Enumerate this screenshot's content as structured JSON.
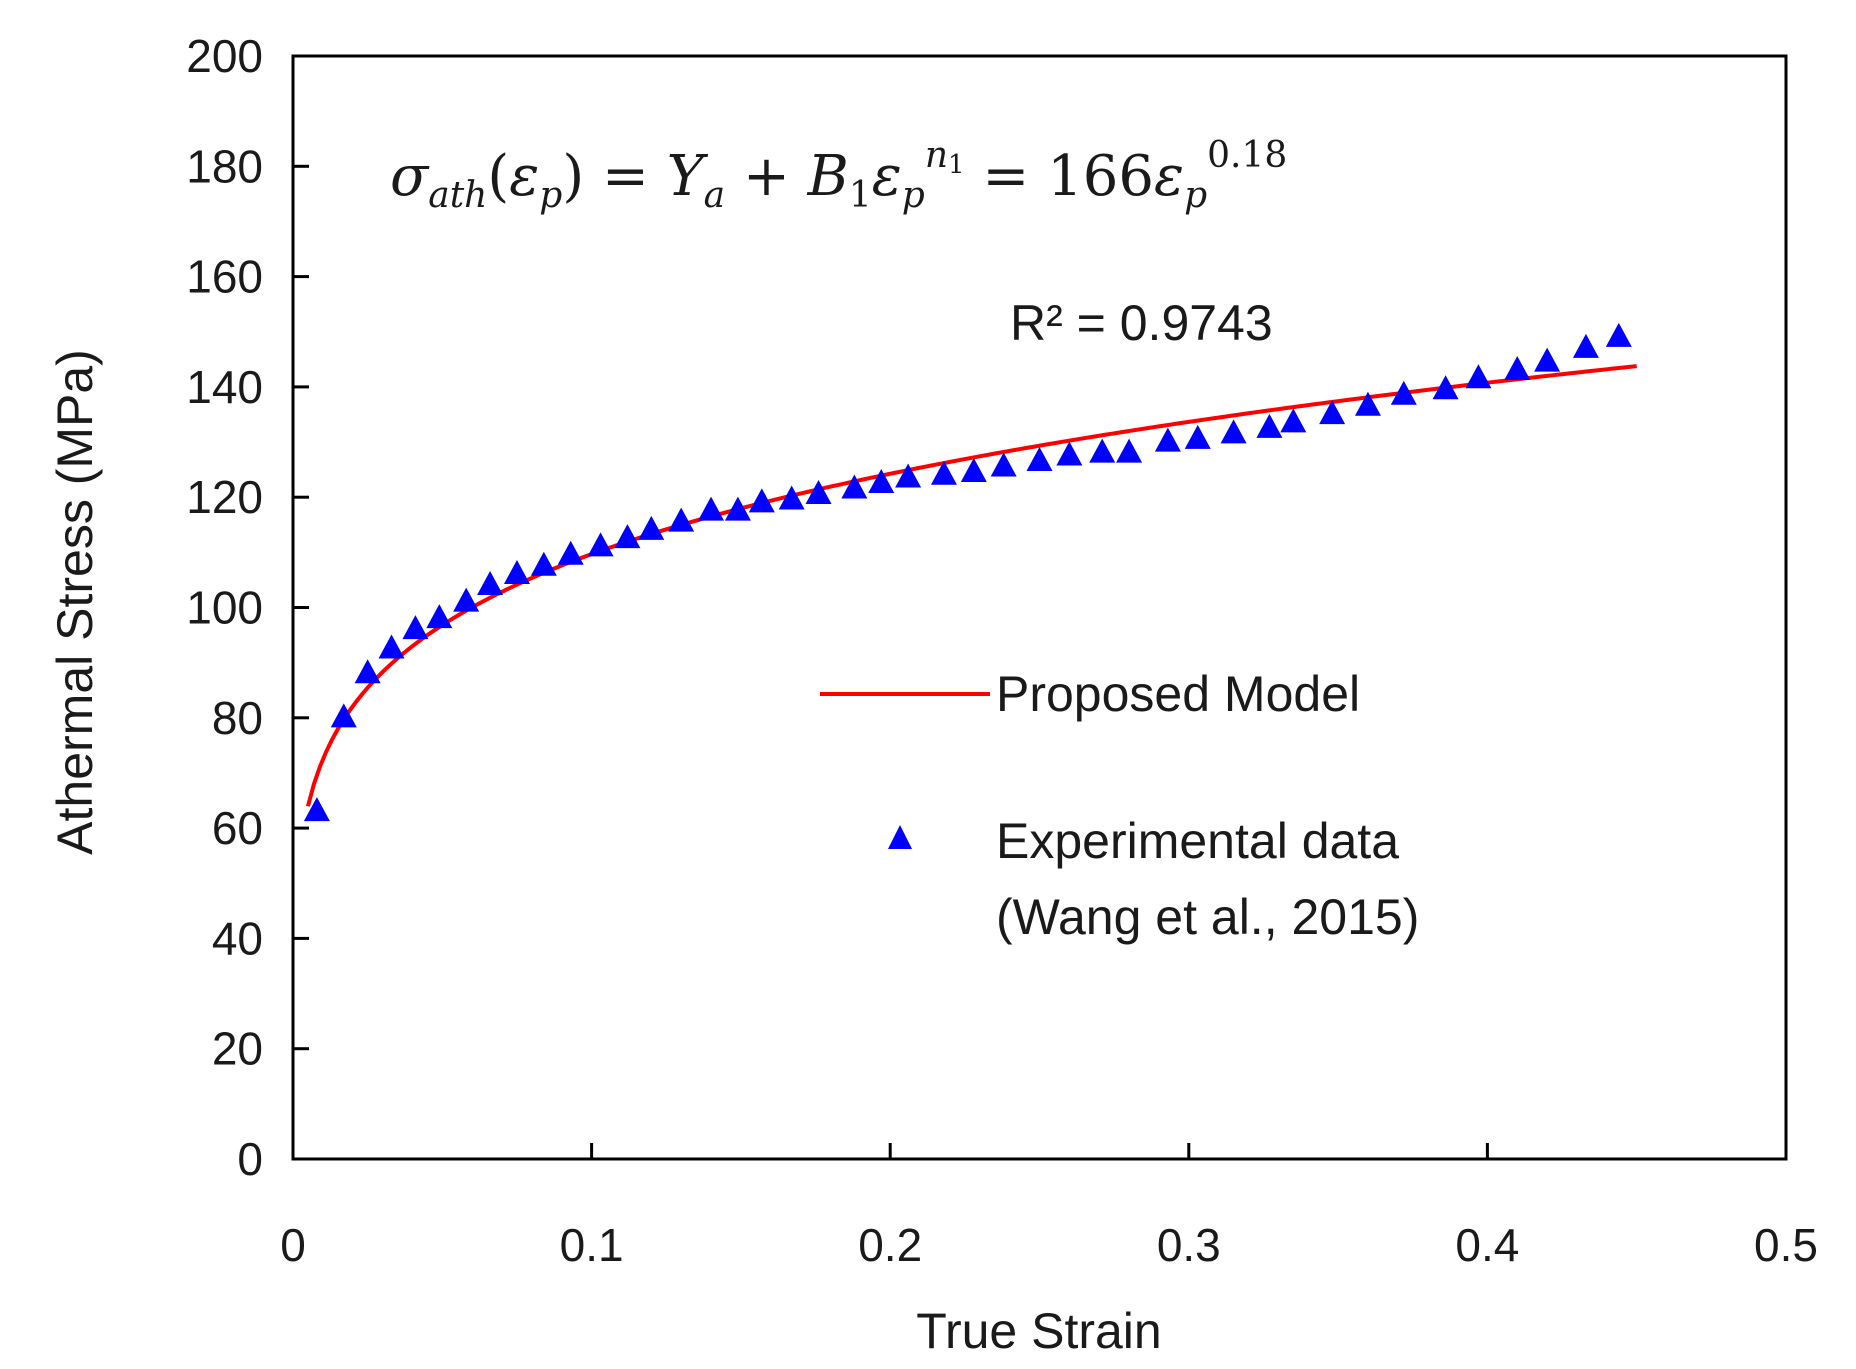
{
  "chart_data": {
    "type": "line",
    "title": "",
    "xlabel": "True Strain",
    "ylabel": "Athermal Stress (MPa)",
    "xlim": [
      0,
      0.5
    ],
    "ylim": [
      0,
      200
    ],
    "x_ticks": [
      0,
      0.1,
      0.2,
      0.3,
      0.4,
      0.5
    ],
    "x_tick_labels": [
      "0",
      "0.1",
      "0.2",
      "0.3",
      "0.4",
      "0.5"
    ],
    "y_ticks": [
      0,
      20,
      40,
      60,
      80,
      100,
      120,
      140,
      160,
      180,
      200
    ],
    "y_tick_labels": [
      "0",
      "20",
      "40",
      "60",
      "80",
      "100",
      "120",
      "140",
      "160",
      "180",
      "200"
    ],
    "grid": false,
    "equation": "σath(εp) = Ya + B1εp^n1 = 166εp^0.18",
    "r_squared": "R² = 0.9743",
    "model": {
      "name": "Proposed Model",
      "color": "#ff0000",
      "coefficient": 166,
      "exponent": 0.18,
      "x_start": 0.005,
      "x_end": 0.45
    },
    "series": [
      {
        "name": "Experimental data (Wang et al., 2015)",
        "legend_lines": [
          "Experimental data",
          "(Wang et al., 2015)"
        ],
        "marker": "triangle",
        "color": "#0000ff",
        "x": [
          0.008,
          0.017,
          0.025,
          0.033,
          0.041,
          0.049,
          0.058,
          0.066,
          0.075,
          0.084,
          0.093,
          0.103,
          0.112,
          0.12,
          0.13,
          0.14,
          0.149,
          0.157,
          0.167,
          0.176,
          0.188,
          0.197,
          0.206,
          0.218,
          0.228,
          0.238,
          0.25,
          0.26,
          0.271,
          0.28,
          0.293,
          0.303,
          0.315,
          0.327,
          0.335,
          0.348,
          0.36,
          0.372,
          0.386,
          0.397,
          0.41,
          0.42,
          0.433,
          0.444
        ],
        "y": [
          63,
          80,
          88,
          92.5,
          96,
          98,
          101,
          104,
          106,
          107.5,
          109.5,
          111,
          112.5,
          114,
          115.5,
          117.5,
          117.5,
          119,
          119.5,
          120.5,
          121.5,
          122.5,
          123.5,
          124,
          124.5,
          125.5,
          126.5,
          127.5,
          128,
          128,
          130,
          130.5,
          131.5,
          132.5,
          133.5,
          135,
          136.5,
          138.5,
          139.5,
          141.5,
          143,
          144.5,
          147,
          149
        ]
      }
    ]
  }
}
